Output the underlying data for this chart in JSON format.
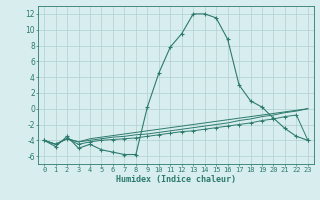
{
  "xlabel": "Humidex (Indice chaleur)",
  "x_values": [
    0,
    1,
    2,
    3,
    4,
    5,
    6,
    7,
    8,
    9,
    10,
    11,
    12,
    13,
    14,
    15,
    16,
    17,
    18,
    19,
    20,
    21,
    22,
    23
  ],
  "line1_y": [
    -4.0,
    -4.8,
    -3.5,
    -5.0,
    -4.5,
    -5.2,
    -5.5,
    -5.8,
    -5.8,
    0.2,
    4.5,
    7.8,
    9.5,
    12.0,
    12.0,
    11.5,
    8.8,
    3.0,
    1.0,
    0.2,
    -1.2,
    -2.5,
    -3.5,
    -4.0
  ],
  "line2_y": [
    -4.0,
    -4.5,
    -3.8,
    -4.2,
    -3.8,
    -3.6,
    -3.4,
    -3.2,
    -3.0,
    -2.8,
    -2.6,
    -2.4,
    -2.2,
    -2.0,
    -1.8,
    -1.6,
    -1.4,
    -1.2,
    -1.0,
    -0.8,
    -0.6,
    -0.4,
    -0.2,
    0.0
  ],
  "line3_y": [
    -4.0,
    -4.5,
    -3.8,
    -4.2,
    -4.0,
    -3.8,
    -3.6,
    -3.5,
    -3.3,
    -3.2,
    -3.0,
    -2.8,
    -2.6,
    -2.4,
    -2.2,
    -2.0,
    -1.8,
    -1.5,
    -1.3,
    -1.0,
    -0.8,
    -0.5,
    -0.3,
    0.0
  ],
  "line4_y": [
    -4.0,
    -4.5,
    -3.8,
    -4.5,
    -4.2,
    -4.0,
    -3.9,
    -3.8,
    -3.7,
    -3.5,
    -3.3,
    -3.1,
    -2.9,
    -2.8,
    -2.6,
    -2.4,
    -2.2,
    -2.0,
    -1.8,
    -1.5,
    -1.3,
    -1.0,
    -0.8,
    -4.0
  ],
  "line_color": "#2d7a6e",
  "background_color": "#d8eeee",
  "grid_color": "#b0d0d0",
  "ylim": [
    -7,
    13
  ],
  "xlim": [
    -0.5,
    23.5
  ],
  "yticks": [
    -6,
    -4,
    -2,
    0,
    2,
    4,
    6,
    8,
    10,
    12
  ],
  "xticks": [
    0,
    1,
    2,
    3,
    4,
    5,
    6,
    7,
    8,
    9,
    10,
    11,
    12,
    13,
    14,
    15,
    16,
    17,
    18,
    19,
    20,
    21,
    22,
    23
  ],
  "xlabel_fontsize": 6,
  "tick_fontsize": 5,
  "ytick_fontsize": 5.5
}
